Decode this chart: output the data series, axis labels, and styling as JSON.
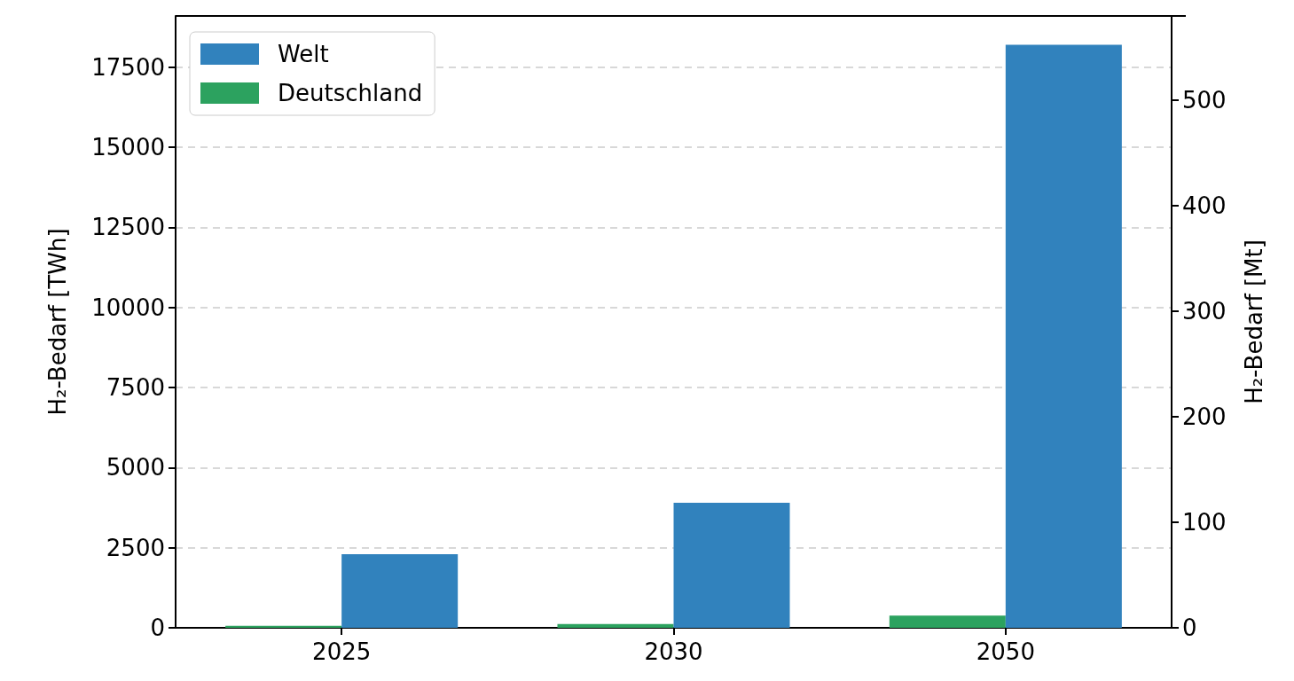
{
  "chart_data": {
    "type": "bar",
    "categories": [
      "2025",
      "2030",
      "2050"
    ],
    "series": [
      {
        "name": "Deutschland",
        "color": "#2ca25f",
        "values": [
          60,
          120,
          380
        ]
      },
      {
        "name": "Welt",
        "color": "#3182bd",
        "values": [
          2300,
          3900,
          18200
        ]
      }
    ],
    "ylabel": "H₂-Bedarf [TWh]",
    "y2label": "H₂-Bedarf [Mt]",
    "ylim": [
      0,
      19100
    ],
    "yticks": [
      0,
      2500,
      5000,
      7500,
      10000,
      12500,
      15000,
      17500
    ],
    "y2lim": [
      0,
      580
    ],
    "y2ticks": [
      0,
      100,
      200,
      300,
      400,
      500
    ],
    "grid": "y",
    "legend": "top left"
  }
}
